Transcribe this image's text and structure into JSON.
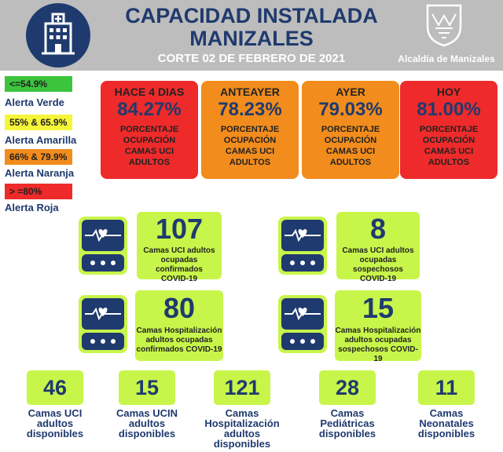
{
  "header": {
    "title_line1": "CAPACIDAD INSTALADA",
    "title_line2": "MANIZALES",
    "subtitle": "CORTE 02 DE FEBRERO DE 2021",
    "org": "Alcaldía de Manizales"
  },
  "colors": {
    "navy": "#1f3a6e",
    "lime": "#c8f54a",
    "green": "#3cc43c",
    "yellow": "#f5f53a",
    "orange": "#f28c1c",
    "red": "#ee2a2a",
    "header_gray": "#bdbdbd"
  },
  "legend": [
    {
      "range": "<=54.9%",
      "label": "Alerta Verde",
      "color": "#3cc43c"
    },
    {
      "range": "55% & 65.9%",
      "label": "Alerta Amarilla",
      "color": "#f5f53a"
    },
    {
      "range": "66% & 79.9%",
      "label": "Alerta Naranja",
      "color": "#f28c1c"
    },
    {
      "range": "> =80%",
      "label": "Alerta Roja",
      "color": "#ee2a2a"
    }
  ],
  "days": [
    {
      "name": "HACE 4 DIAS",
      "pct": "84.27%",
      "desc_l1": "PORCENTAJE",
      "desc_l2": "OCUPACIÓN",
      "desc_l3": "CAMAS UCI",
      "desc_l4": "ADULTOS",
      "color": "#ee2a2a"
    },
    {
      "name": "ANTEAYER",
      "pct": "78.23%",
      "desc_l1": "PORCENTAJE",
      "desc_l2": "OCUPACIÓN",
      "desc_l3": "CAMAS UCI",
      "desc_l4": "ADULTOS",
      "color": "#f28c1c"
    },
    {
      "name": "AYER",
      "pct": "79.03%",
      "desc_l1": "PORCENTAJE",
      "desc_l2": "OCUPACIÓN",
      "desc_l3": "CAMAS UCI",
      "desc_l4": "ADULTOS",
      "color": "#f28c1c"
    },
    {
      "name": "HOY",
      "pct": "81.00%",
      "desc_l1": "PORCENTAJE",
      "desc_l2": "OCUPACIÓN",
      "desc_l3": "CAMAS UCI",
      "desc_l4": "ADULTOS",
      "color": "#ee2a2a"
    }
  ],
  "stats": [
    {
      "value": "107",
      "l1": "Camas UCI adultos",
      "l2": "ocupadas confirmados",
      "l3": "COVID-19"
    },
    {
      "value": "8",
      "l1": "Camas UCI adultos",
      "l2": "ocupadas sospechosos",
      "l3": "COVID-19"
    },
    {
      "value": "80",
      "l1": "Camas  Hospitalización",
      "l2": "adultos ocupadas",
      "l3": "confirmados COVID-19"
    },
    {
      "value": "15",
      "l1": "Camas  Hospitalización",
      "l2": "adultos ocupadas",
      "l3": "sospechosos COVID-19"
    }
  ],
  "available": [
    {
      "value": "46",
      "l1": "Camas UCI",
      "l2": "adultos",
      "l3": "disponibles",
      "l4": ""
    },
    {
      "value": "15",
      "l1": "Camas UCIN",
      "l2": "adultos",
      "l3": "disponibles",
      "l4": ""
    },
    {
      "value": "121",
      "l1": "Camas",
      "l2": "Hospitalización",
      "l3": "adultos",
      "l4": "disponibles"
    },
    {
      "value": "28",
      "l1": "Camas",
      "l2": "Pediátricas",
      "l3": "disponibles",
      "l4": ""
    },
    {
      "value": "11",
      "l1": "Camas",
      "l2": "Neonatales",
      "l3": "disponibles",
      "l4": ""
    }
  ]
}
